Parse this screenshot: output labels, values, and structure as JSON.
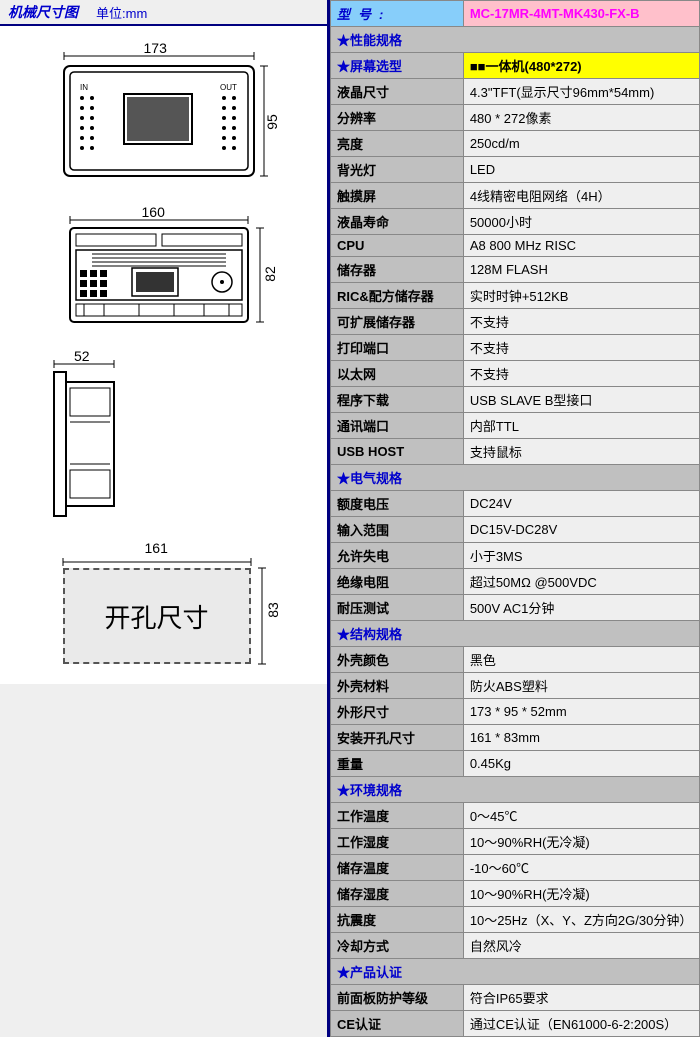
{
  "left": {
    "title": "机械尺寸图",
    "unit": "单位:mm",
    "dim_front_w": "173",
    "dim_front_h": "95",
    "dim_back_w": "160",
    "dim_back_h": "82",
    "dim_side_w": "52",
    "dim_cut_w": "161",
    "dim_cut_h": "83",
    "cutout_label": "开孔尺寸",
    "io_in": "IN",
    "io_out": "OUT"
  },
  "spec": {
    "model_label": "型号:",
    "model_value": "MC-17MR-4MT-MK430-FX-B",
    "sections": [
      {
        "type": "section",
        "label": "★性能规格"
      },
      {
        "type": "screen",
        "label": "★屏幕选型",
        "value": "■■一体机(480*272)"
      },
      {
        "type": "row",
        "label": "液晶尺寸",
        "value": "4.3\"TFT(显示尺寸96mm*54mm)"
      },
      {
        "type": "row",
        "label": "分辨率",
        "value": "480 * 272像素"
      },
      {
        "type": "row",
        "label": "亮度",
        "value": "250cd/m"
      },
      {
        "type": "row",
        "label": "背光灯",
        "value": "LED"
      },
      {
        "type": "row",
        "label": "触摸屏",
        "value": "4线精密电阻网络（4H）"
      },
      {
        "type": "row",
        "label": "液晶寿命",
        "value": "50000小时"
      },
      {
        "type": "row",
        "label": "CPU",
        "value": "A8 800 MHz RISC"
      },
      {
        "type": "row",
        "label": "储存器",
        "value": "128M FLASH"
      },
      {
        "type": "row",
        "label": "RIC&配方储存器",
        "value": "实时时钟+512KB"
      },
      {
        "type": "row",
        "label": "可扩展储存器",
        "value": "不支持"
      },
      {
        "type": "row",
        "label": "打印端口",
        "value": "不支持"
      },
      {
        "type": "row",
        "label": "以太网",
        "value": "不支持"
      },
      {
        "type": "row",
        "label": "程序下载",
        "value": "USB SLAVE B型接口"
      },
      {
        "type": "row",
        "label": "通讯端口",
        "value": "内部TTL"
      },
      {
        "type": "row",
        "label": "USB HOST",
        "value": "支持鼠标"
      },
      {
        "type": "section",
        "label": "★电气规格"
      },
      {
        "type": "row",
        "label": "额度电压",
        "value": "DC24V"
      },
      {
        "type": "row",
        "label": "输入范围",
        "value": "DC15V-DC28V"
      },
      {
        "type": "row",
        "label": "允许失电",
        "value": "小于3MS"
      },
      {
        "type": "row",
        "label": "绝缘电阻",
        "value": "超过50MΩ @500VDC"
      },
      {
        "type": "row",
        "label": "耐压测试",
        "value": "500V AC1分钟"
      },
      {
        "type": "section",
        "label": "★结构规格"
      },
      {
        "type": "row",
        "label": "外壳颜色",
        "value": "黑色"
      },
      {
        "type": "row",
        "label": "外壳材料",
        "value": "防火ABS塑料"
      },
      {
        "type": "hl",
        "label": "外形尺寸",
        "value": "173 * 95 * 52mm"
      },
      {
        "type": "hl",
        "label": "安装开孔尺寸",
        "value": "161 * 83mm"
      },
      {
        "type": "row",
        "label": "重量",
        "value": "0.45Kg"
      },
      {
        "type": "section",
        "label": "★环境规格"
      },
      {
        "type": "row",
        "label": "工作温度",
        "value": "0～45℃"
      },
      {
        "type": "row",
        "label": "工作湿度",
        "value": "10～90%RH(无冷凝)"
      },
      {
        "type": "row",
        "label": "储存温度",
        "value": "-10～60℃"
      },
      {
        "type": "row",
        "label": "储存湿度",
        "value": "10～90%RH(无冷凝)"
      },
      {
        "type": "row",
        "label": "抗震度",
        "value": "10～25Hz（X、Y、Z方向2G/30分钟）"
      },
      {
        "type": "row",
        "label": "冷却方式",
        "value": "自然风冷"
      },
      {
        "type": "section",
        "label": "★产品认证"
      },
      {
        "type": "row",
        "label": "前面板防护等级",
        "value": "符合IP65要求"
      },
      {
        "type": "row",
        "label": "CE认证",
        "value": "通过CE认证（EN61000-6-2:200S）"
      }
    ]
  },
  "colors": {
    "header_border": "#000080",
    "label_bg": "#c0c0c0",
    "value_bg": "#efefef",
    "model_label_bg": "#87cefa",
    "model_value_bg": "#ffc0cb",
    "model_value_fg": "#ff00ff",
    "screen_value_bg": "#ffff00",
    "hl_bg": "#ffa500",
    "section_fg": "#0000cc"
  }
}
